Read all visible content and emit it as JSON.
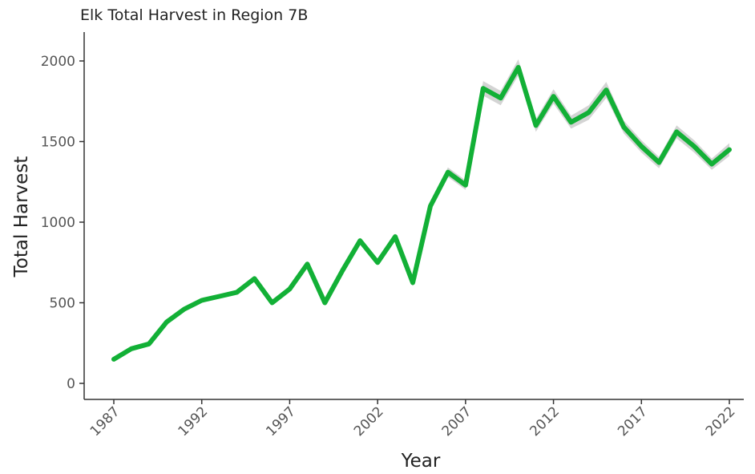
{
  "chart_data": {
    "type": "line",
    "title": "Elk Total Harvest in Region 7B",
    "xlabel": "Year",
    "ylabel": "Total Harvest",
    "xlim": [
      1987,
      2022
    ],
    "ylim": [
      0,
      2000
    ],
    "xticks": [
      "1987",
      "1992",
      "1997",
      "2002",
      "2007",
      "2012",
      "2017",
      "2022"
    ],
    "yticks": [
      "0",
      "500",
      "1000",
      "1500",
      "2000"
    ],
    "grid": false,
    "line_color": "#12b036",
    "band_color": "#cfcfcf",
    "x": [
      1987,
      1988,
      1989,
      1990,
      1991,
      1992,
      1993,
      1994,
      1995,
      1996,
      1997,
      1998,
      1999,
      2000,
      2001,
      2002,
      2003,
      2004,
      2005,
      2006,
      2007,
      2008,
      2009,
      2010,
      2011,
      2012,
      2013,
      2014,
      2015,
      2016,
      2017,
      2018,
      2019,
      2020,
      2021,
      2022
    ],
    "values": [
      150,
      215,
      245,
      380,
      460,
      515,
      540,
      565,
      650,
      500,
      585,
      740,
      500,
      700,
      885,
      750,
      910,
      625,
      1100,
      1310,
      1230,
      1830,
      1770,
      1960,
      1600,
      1780,
      1620,
      1680,
      1820,
      1590,
      1470,
      1370,
      1560,
      1470,
      1360,
      1450
    ],
    "band_half_width": [
      10,
      10,
      10,
      12,
      12,
      12,
      12,
      14,
      14,
      14,
      15,
      15,
      16,
      16,
      18,
      18,
      20,
      22,
      25,
      30,
      30,
      45,
      45,
      50,
      40,
      45,
      40,
      45,
      50,
      40,
      38,
      35,
      40,
      38,
      35,
      40
    ]
  }
}
